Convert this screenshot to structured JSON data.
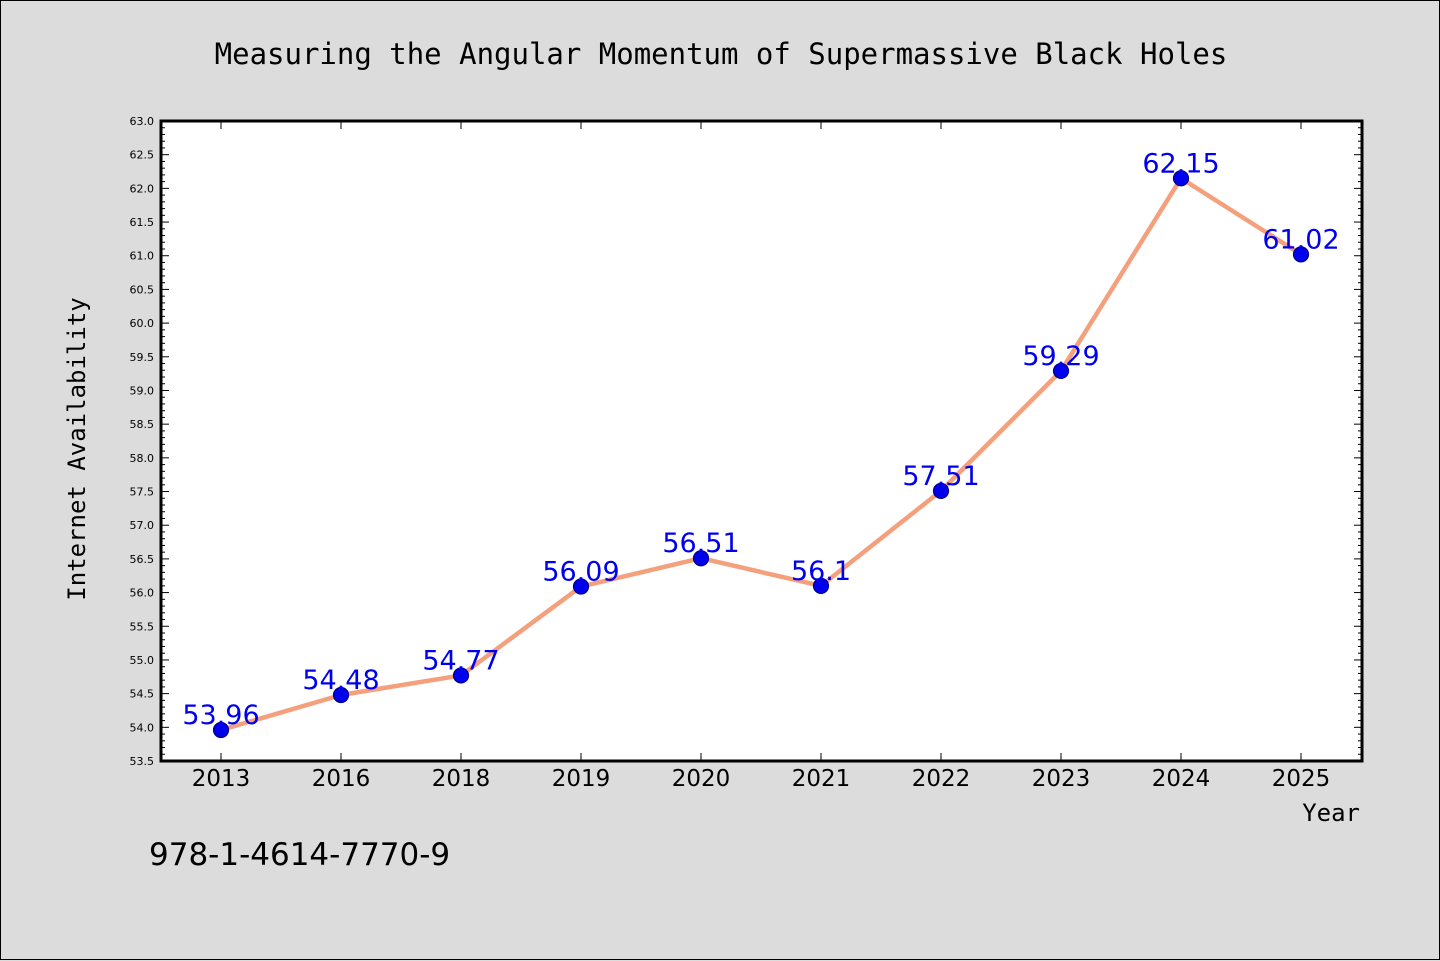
{
  "footer": {
    "code": "978-1-4614-7770-9"
  },
  "chart_data": {
    "type": "line",
    "title": "Measuring the Angular Momentum of Supermassive Black Holes",
    "xlabel": "Year",
    "ylabel": "Internet Availability",
    "categories": [
      "2013",
      "2016",
      "2018",
      "2019",
      "2020",
      "2021",
      "2022",
      "2023",
      "2024",
      "2025"
    ],
    "values": [
      53.96,
      54.48,
      54.77,
      56.09,
      56.51,
      56.1,
      57.51,
      59.29,
      62.15,
      61.02
    ],
    "data_labels": [
      "53.96",
      "54.48",
      "54.77",
      "56.09",
      "56.51",
      "56.1",
      "57.51",
      "59.29",
      "62.15",
      "61.02"
    ],
    "ylim": [
      53.5,
      63.0
    ],
    "yticks": [
      "53.5",
      "54.0",
      "54.5",
      "55.0",
      "55.5",
      "56.0",
      "56.5",
      "57.0",
      "57.5",
      "58.0",
      "58.5",
      "59.0",
      "59.5",
      "60.0",
      "60.5",
      "61.0",
      "61.5",
      "62.0",
      "62.5",
      "63.0"
    ],
    "ytick_values": [
      53.5,
      54.0,
      54.5,
      55.0,
      55.5,
      56.0,
      56.5,
      57.0,
      57.5,
      58.0,
      58.5,
      59.0,
      59.5,
      60.0,
      60.5,
      61.0,
      61.5,
      62.0,
      62.5,
      63.0
    ],
    "grid": false,
    "legend": "none",
    "colors": {
      "line": "#f4a07c",
      "marker_fill": "#0000ee",
      "marker_edge": "#000080",
      "data_label": "#0000ee",
      "plot_background": "#ffffff",
      "page_background": "#dcdcdc"
    }
  }
}
